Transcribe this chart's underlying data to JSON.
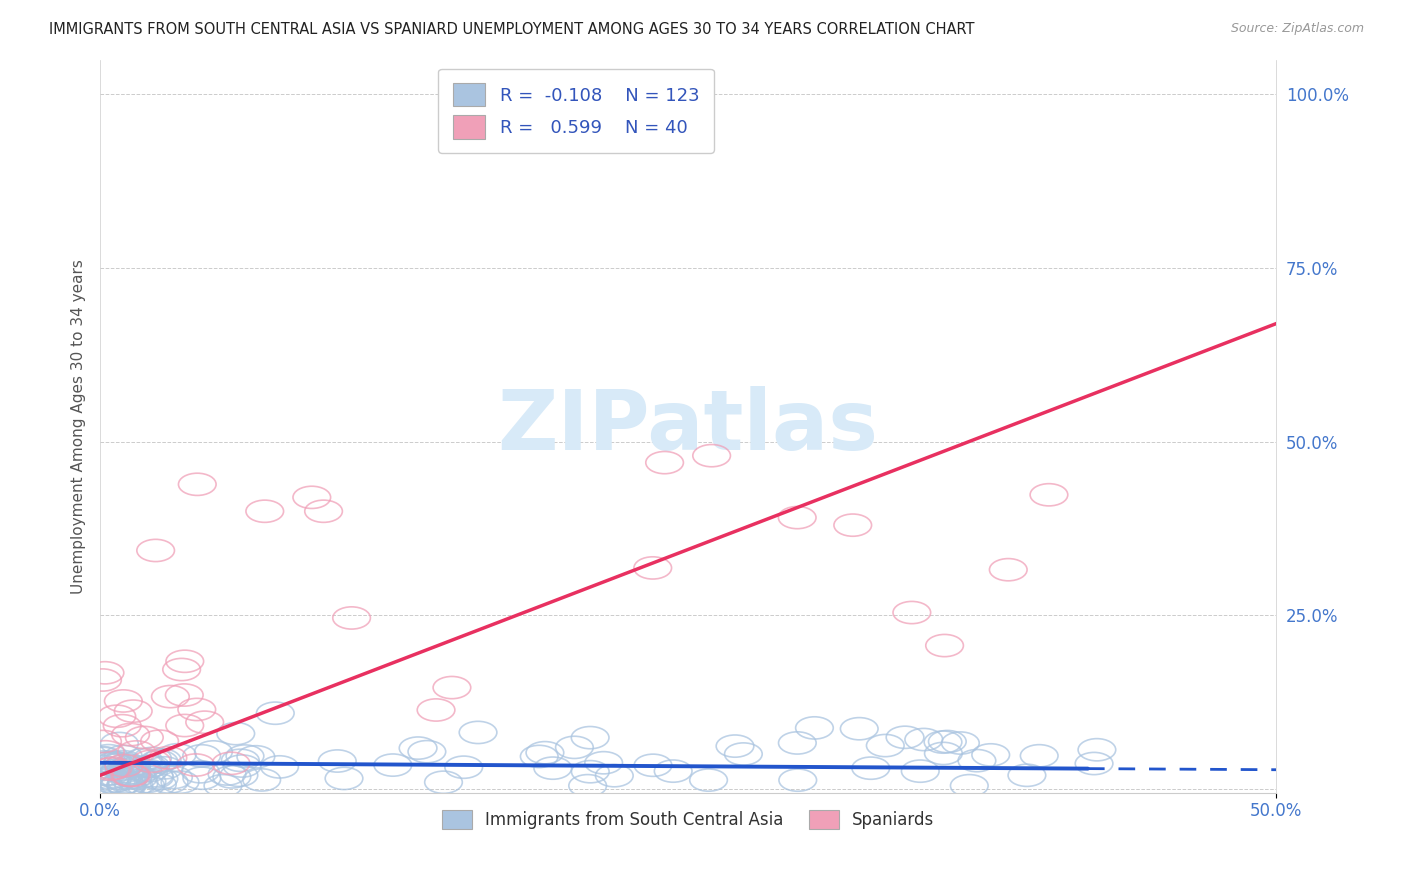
{
  "title": "IMMIGRANTS FROM SOUTH CENTRAL ASIA VS SPANIARD UNEMPLOYMENT AMONG AGES 30 TO 34 YEARS CORRELATION CHART",
  "source": "Source: ZipAtlas.com",
  "ylabel": "Unemployment Among Ages 30 to 34 years",
  "xlim": [
    0.0,
    0.5
  ],
  "ylim": [
    -0.005,
    1.05
  ],
  "blue_R": -0.108,
  "blue_N": 123,
  "pink_R": 0.599,
  "pink_N": 40,
  "blue_color": "#aac4e0",
  "pink_color": "#f0a0b8",
  "blue_line_color": "#2255cc",
  "pink_line_color": "#e83060",
  "legend_label_blue": "Immigrants from South Central Asia",
  "legend_label_pink": "Spaniards",
  "background_color": "#ffffff",
  "grid_color": "#cccccc",
  "watermark_color": "#d8eaf8",
  "title_fontsize": 10.5,
  "source_fontsize": 9,
  "axis_label_color": "#4477cc",
  "ylabel_color": "#555555"
}
